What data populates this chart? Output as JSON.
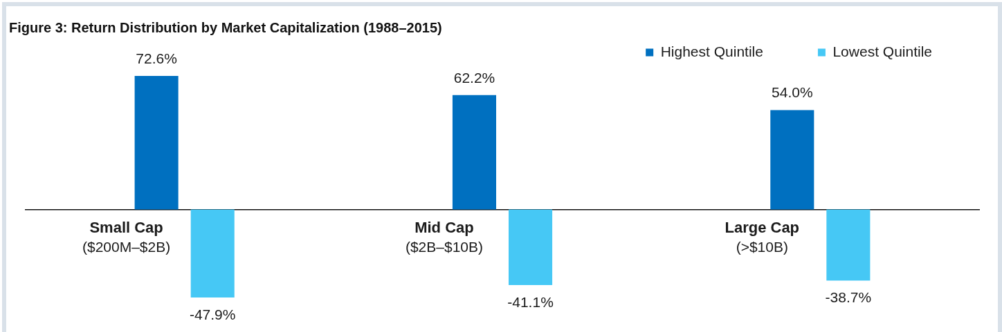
{
  "chart_data": {
    "type": "bar",
    "title": "Figure 3: Return Distribution by Market Capitalization (1988–2015)",
    "categories": [
      "Small Cap\n($200M–$2B)",
      "Mid Cap\n($2B–$10B)",
      "Large Cap\n(>$10B)"
    ],
    "series": [
      {
        "name": "Highest Quintile",
        "color": "#0070c0",
        "values": [
          72.6,
          62.2,
          54.0
        ],
        "value_labels": [
          "72.6%",
          "62.2%",
          "54.0%"
        ]
      },
      {
        "name": "Lowest Quintile",
        "color": "#46c8f5",
        "values": [
          -47.9,
          -41.1,
          -38.7
        ],
        "value_labels": [
          "-47.9%",
          "-41.1%",
          "-38.7%"
        ]
      }
    ],
    "legend": "top right"
  }
}
